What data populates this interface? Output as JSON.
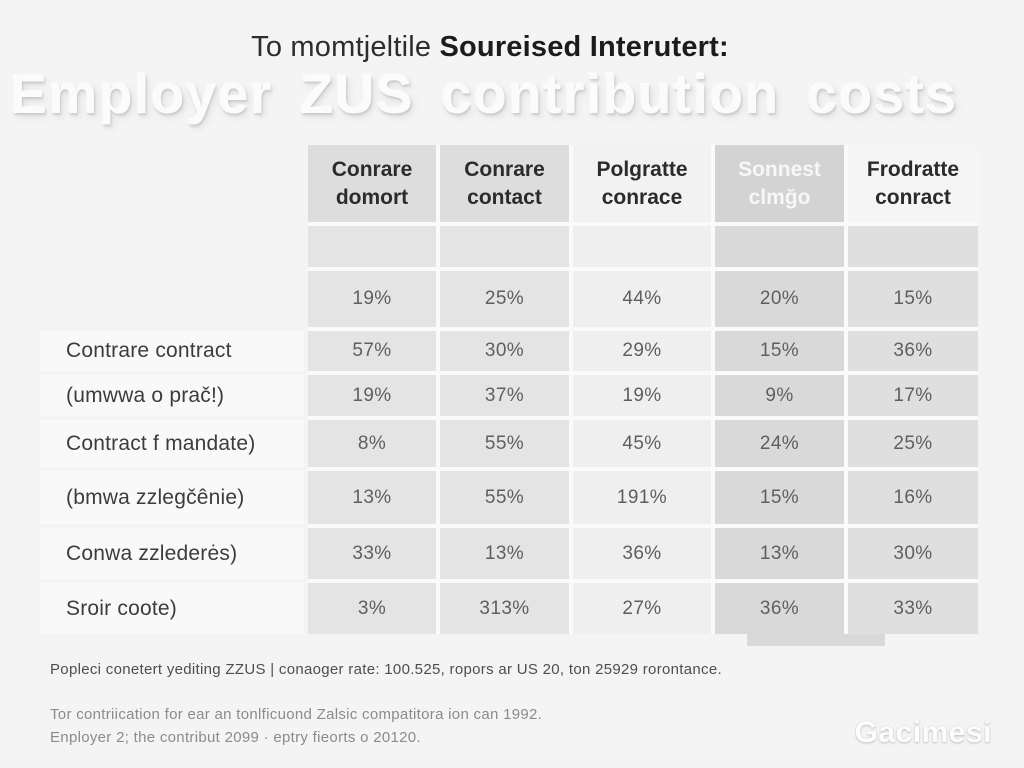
{
  "page": {
    "background": "#f5f4f4",
    "title_regular": "To momtjeltile ",
    "title_bold": "Soureised Interutert:",
    "subtitle_embossed": "Employer ZUS contribution costs",
    "footnote_primary": "Popleci conetert yediting ZZUS | conaoger rate: 100.525, ropors ar US 20, ton 25929 rorontance.",
    "footnote_secondary_line1": "Tor contriication for ear an tonlficuond Zalsic compatitora ion can 1992.",
    "footnote_secondary_line2": "Enployer 2; the contribut 2099 · eptry fieorts o 20120.",
    "logo_text": "Gacimesi"
  },
  "chart_data": {
    "type": "table",
    "title": "To momtjeltile Soureised Interutert:",
    "subtitle": "Employer ZUS contribution costs",
    "legend_position": "none",
    "grid": "off",
    "columns": [
      {
        "label": "Conrare\ndomort",
        "header_bg": "#dedddd",
        "cell_bg": "#e5e4e4",
        "header_text": "#2b2b2b"
      },
      {
        "label": "Conrare\ncontact",
        "header_bg": "#dedddd",
        "cell_bg": "#e5e4e4",
        "header_text": "#2b2b2b"
      },
      {
        "label": "Polgratte\nconrace",
        "header_bg": "#f3f2f2",
        "cell_bg": "#f0efef",
        "header_text": "#2b2b2b"
      },
      {
        "label": "Sonnest\nclmğo",
        "header_bg": "#d4d3d3",
        "cell_bg": "#dad9d9",
        "header_text": "#f8f7f7"
      },
      {
        "label": "Frodratte\nconract",
        "header_bg": "#f6f5f5",
        "cell_bg": "#e0dfdf",
        "header_text": "#2b2b2b"
      }
    ],
    "rows": [
      {
        "label": "",
        "values": [
          "",
          "",
          "",
          "",
          ""
        ]
      },
      {
        "label": "",
        "values": [
          "19%",
          "25%",
          "44%",
          "20%",
          "15%"
        ]
      },
      {
        "label": "Contrare contract",
        "values": [
          "57%",
          "30%",
          "29%",
          "15%",
          "36%"
        ]
      },
      {
        "label": "(umwwa o prač!)",
        "values": [
          "19%",
          "37%",
          "19%",
          "9%",
          "17%"
        ]
      },
      {
        "label": "Contract f mandate)",
        "values": [
          "8%",
          "55%",
          "45%",
          "24%",
          "25%"
        ]
      },
      {
        "label": "(bmwa zzlegčênie)",
        "values": [
          "13%",
          "55%",
          "191%",
          "15%",
          "16%"
        ]
      },
      {
        "label": "Conwa zzlederės)",
        "values": [
          "33%",
          "13%",
          "36%",
          "13%",
          "30%"
        ]
      },
      {
        "label": "Sroir coote)",
        "values": [
          "3%",
          "313%",
          "27%",
          "36%",
          "33%"
        ]
      }
    ]
  }
}
